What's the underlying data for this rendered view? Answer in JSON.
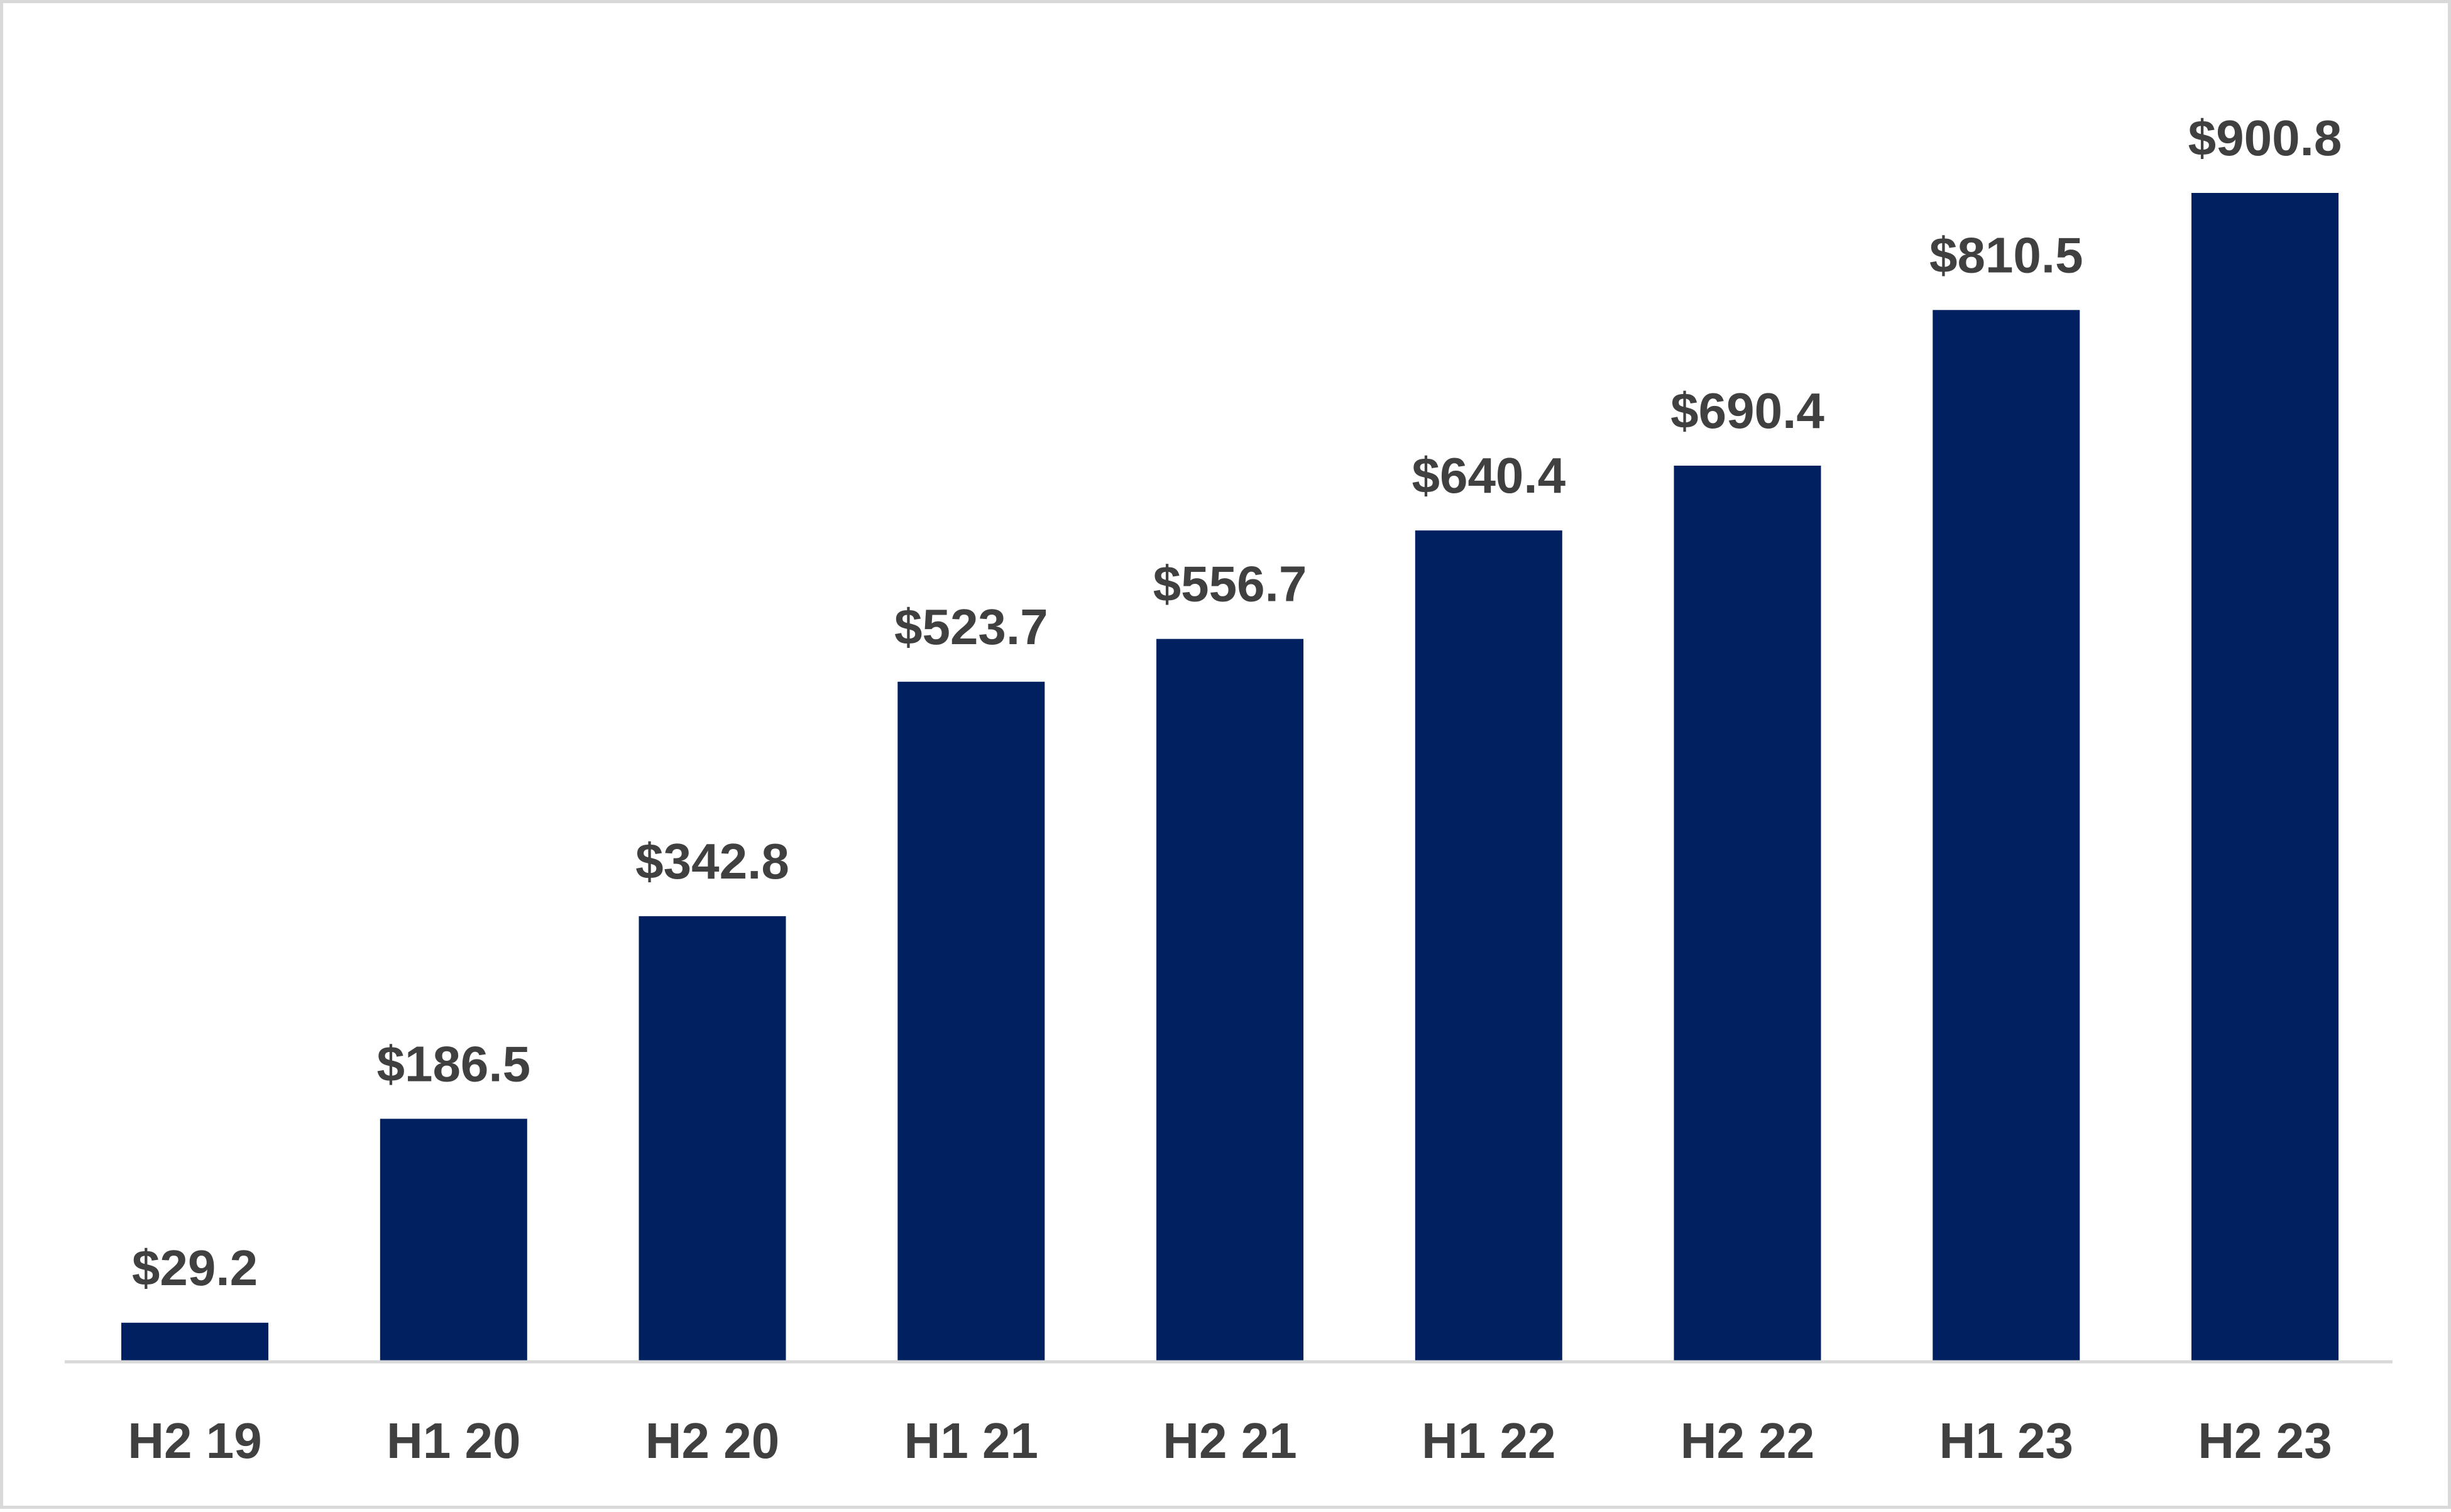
{
  "chart_data": {
    "type": "bar",
    "title": "",
    "xlabel": "",
    "ylabel": "",
    "categories": [
      "H2 19",
      "H1 20",
      "H2 20",
      "H1 21",
      "H2 21",
      "H1 22",
      "H2 22",
      "H1 23",
      "H2 23"
    ],
    "values": [
      29.2,
      186.5,
      342.8,
      523.7,
      556.7,
      640.4,
      690.4,
      810.5,
      900.8
    ],
    "data_labels": [
      "$29.2",
      "$186.5",
      "$342.8",
      "$523.7",
      "$556.7",
      "$640.4",
      "$690.4",
      "$810.5",
      "$900.8"
    ],
    "ylim": [
      0,
      900.8
    ],
    "grid": false,
    "legend": "none",
    "colors": {
      "bar": "#002060",
      "label_text": "#404040",
      "axis_line": "#d9d9d9",
      "frame": "#d9d9d9"
    }
  }
}
